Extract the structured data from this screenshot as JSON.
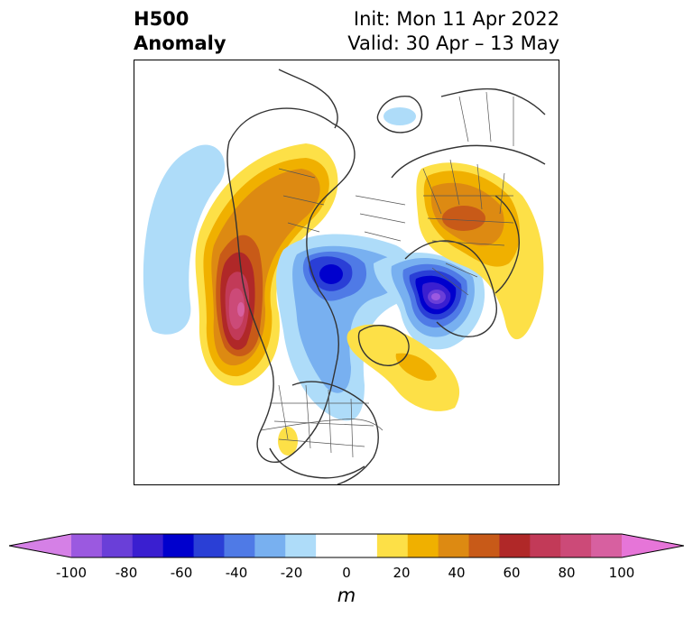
{
  "header": {
    "title_line1": "H500",
    "title_line2": "Anomaly",
    "init": "Init: Mon 11 Apr 2022",
    "valid": "Valid: 30 Apr – 13 May"
  },
  "colorbar": {
    "unit": "m",
    "ticks": [
      "-100",
      "-80",
      "-60",
      "-40",
      "-20",
      "0",
      "20",
      "40",
      "60",
      "80",
      "100"
    ],
    "colors": [
      "#d580e6",
      "#9b59e0",
      "#6a3fd8",
      "#3a1fd0",
      "#0000cd",
      "#2a3fd6",
      "#4f7ae6",
      "#78b0f0",
      "#aedcf9",
      "#ffffff",
      "#ffffff",
      "#fde047",
      "#f0b000",
      "#dd8a12",
      "#c85a18",
      "#b02828",
      "#c23a58",
      "#cc4a78",
      "#d760a0",
      "#e675d8"
    ],
    "range": [
      -100,
      100
    ]
  }
}
